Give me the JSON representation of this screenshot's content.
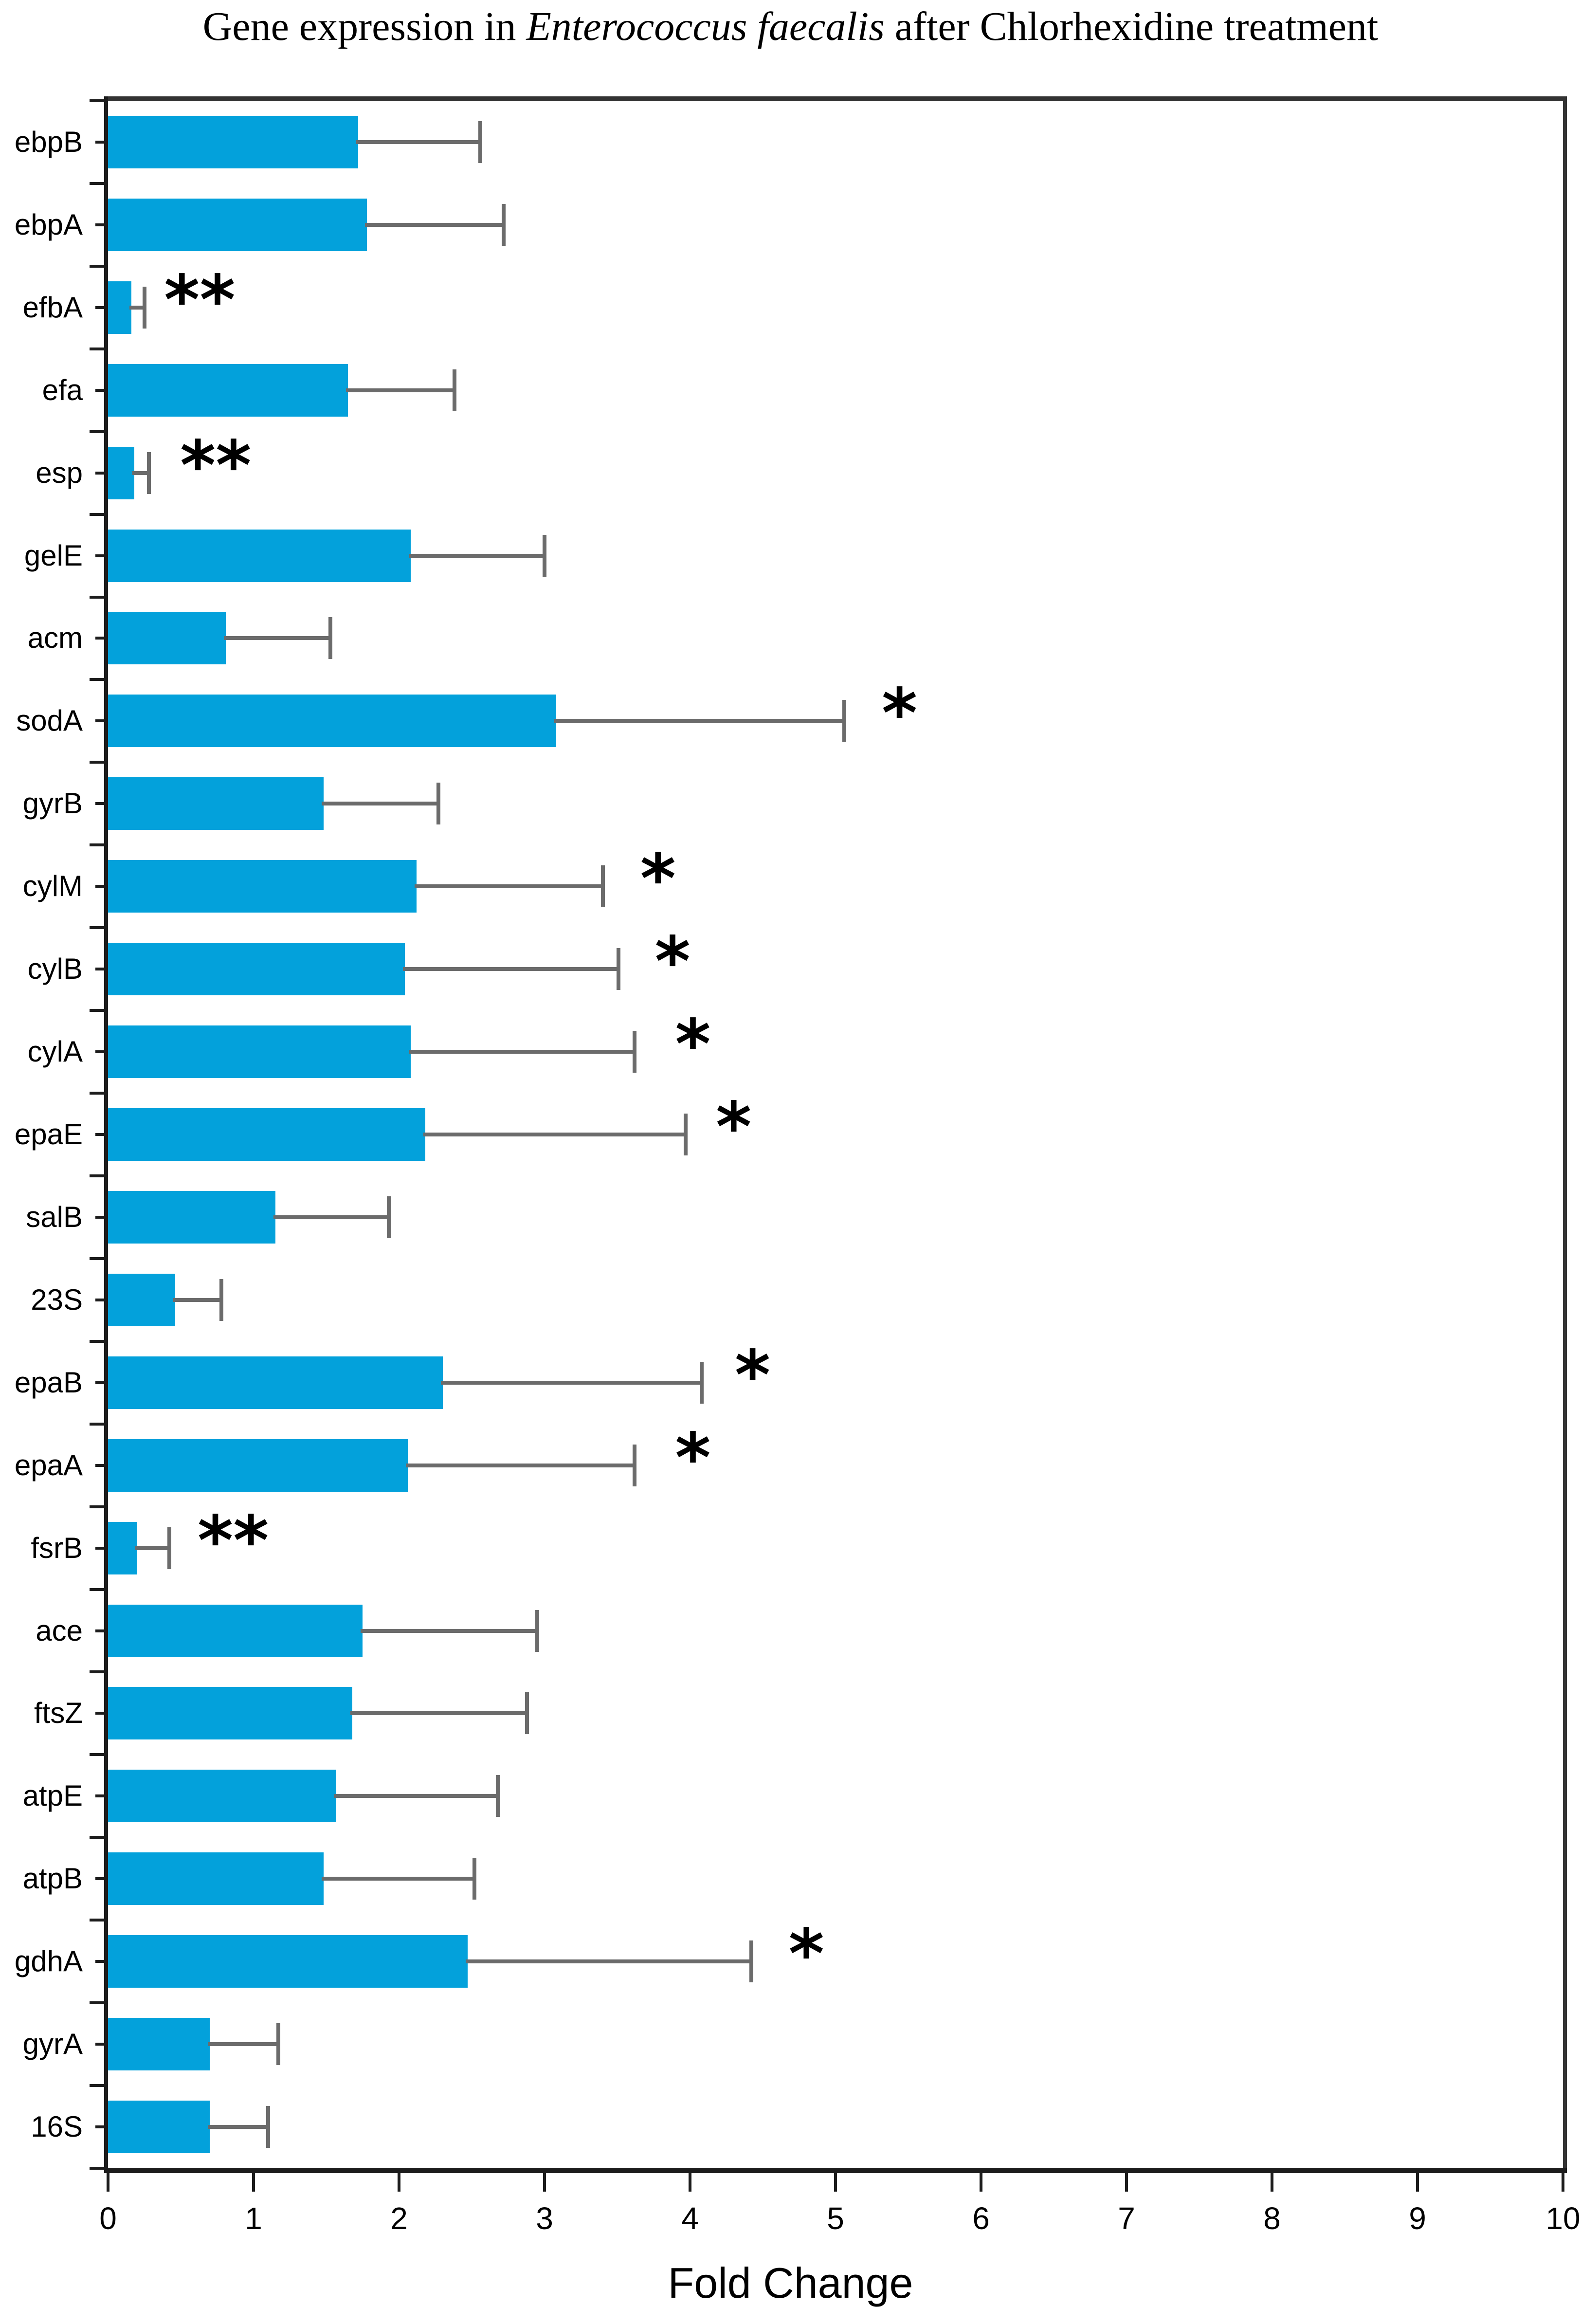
{
  "title": {
    "prefix": "Gene expression in ",
    "species": "Enterococcus faecalis",
    "suffix": " after Chlorhexidine treatment"
  },
  "x_axis": {
    "label": "Fold Change",
    "tick_labels": [
      "0",
      "1",
      "2",
      "3",
      "4",
      "5",
      "6",
      "7",
      "8",
      "9",
      "10"
    ]
  },
  "colors": {
    "bar_fill": "#03A1DB",
    "error_bar": "#6b6b6b",
    "axis": "#1c1c1c",
    "plot_border": "#333333",
    "text": "#000000"
  },
  "chart_data": {
    "type": "bar",
    "orientation": "horizontal",
    "title": "Gene expression in Enterococcus faecalis after Chlorhexidine treatment",
    "xlabel": "Fold Change",
    "ylabel": "",
    "xlim": [
      0,
      10
    ],
    "x_ticks": [
      0,
      1,
      2,
      3,
      4,
      5,
      6,
      7,
      8,
      9,
      10
    ],
    "grid": false,
    "legend": false,
    "categories": [
      "ebpB",
      "ebpA",
      "efbA",
      "efa",
      "esp",
      "gelE",
      "acm",
      "sodA",
      "gyrB",
      "cylM",
      "cylB",
      "cylA",
      "epaE",
      "salB",
      "23S",
      "epaB",
      "epaA",
      "fsrB",
      "ace",
      "ftsZ",
      "atpE",
      "atpB",
      "gdhA",
      "gyrA",
      "16S"
    ],
    "values": [
      1.72,
      1.78,
      0.16,
      1.65,
      0.18,
      2.08,
      0.81,
      3.08,
      1.48,
      2.12,
      2.04,
      2.08,
      2.18,
      1.15,
      0.46,
      2.3,
      2.06,
      0.2,
      1.75,
      1.68,
      1.57,
      1.48,
      2.47,
      0.7,
      0.7
    ],
    "error_upper": [
      2.56,
      2.72,
      0.25,
      2.38,
      0.28,
      3.0,
      1.53,
      5.06,
      2.27,
      3.4,
      3.51,
      3.62,
      3.97,
      1.93,
      0.78,
      4.08,
      3.62,
      0.42,
      2.95,
      2.88,
      2.68,
      2.52,
      4.42,
      1.17,
      1.1
    ],
    "significance": [
      "",
      "",
      "**",
      "",
      "**",
      "",
      "",
      "*",
      "",
      "*",
      "*",
      "*",
      "*",
      "",
      "",
      "*",
      "*",
      "**",
      "",
      "",
      "",
      "",
      "*",
      "",
      ""
    ],
    "significance_x": [
      null,
      null,
      0.63,
      null,
      0.74,
      null,
      null,
      5.44,
      null,
      3.78,
      3.88,
      4.02,
      4.3,
      null,
      null,
      4.43,
      4.02,
      0.86,
      null,
      null,
      null,
      null,
      4.8,
      null,
      null
    ]
  }
}
